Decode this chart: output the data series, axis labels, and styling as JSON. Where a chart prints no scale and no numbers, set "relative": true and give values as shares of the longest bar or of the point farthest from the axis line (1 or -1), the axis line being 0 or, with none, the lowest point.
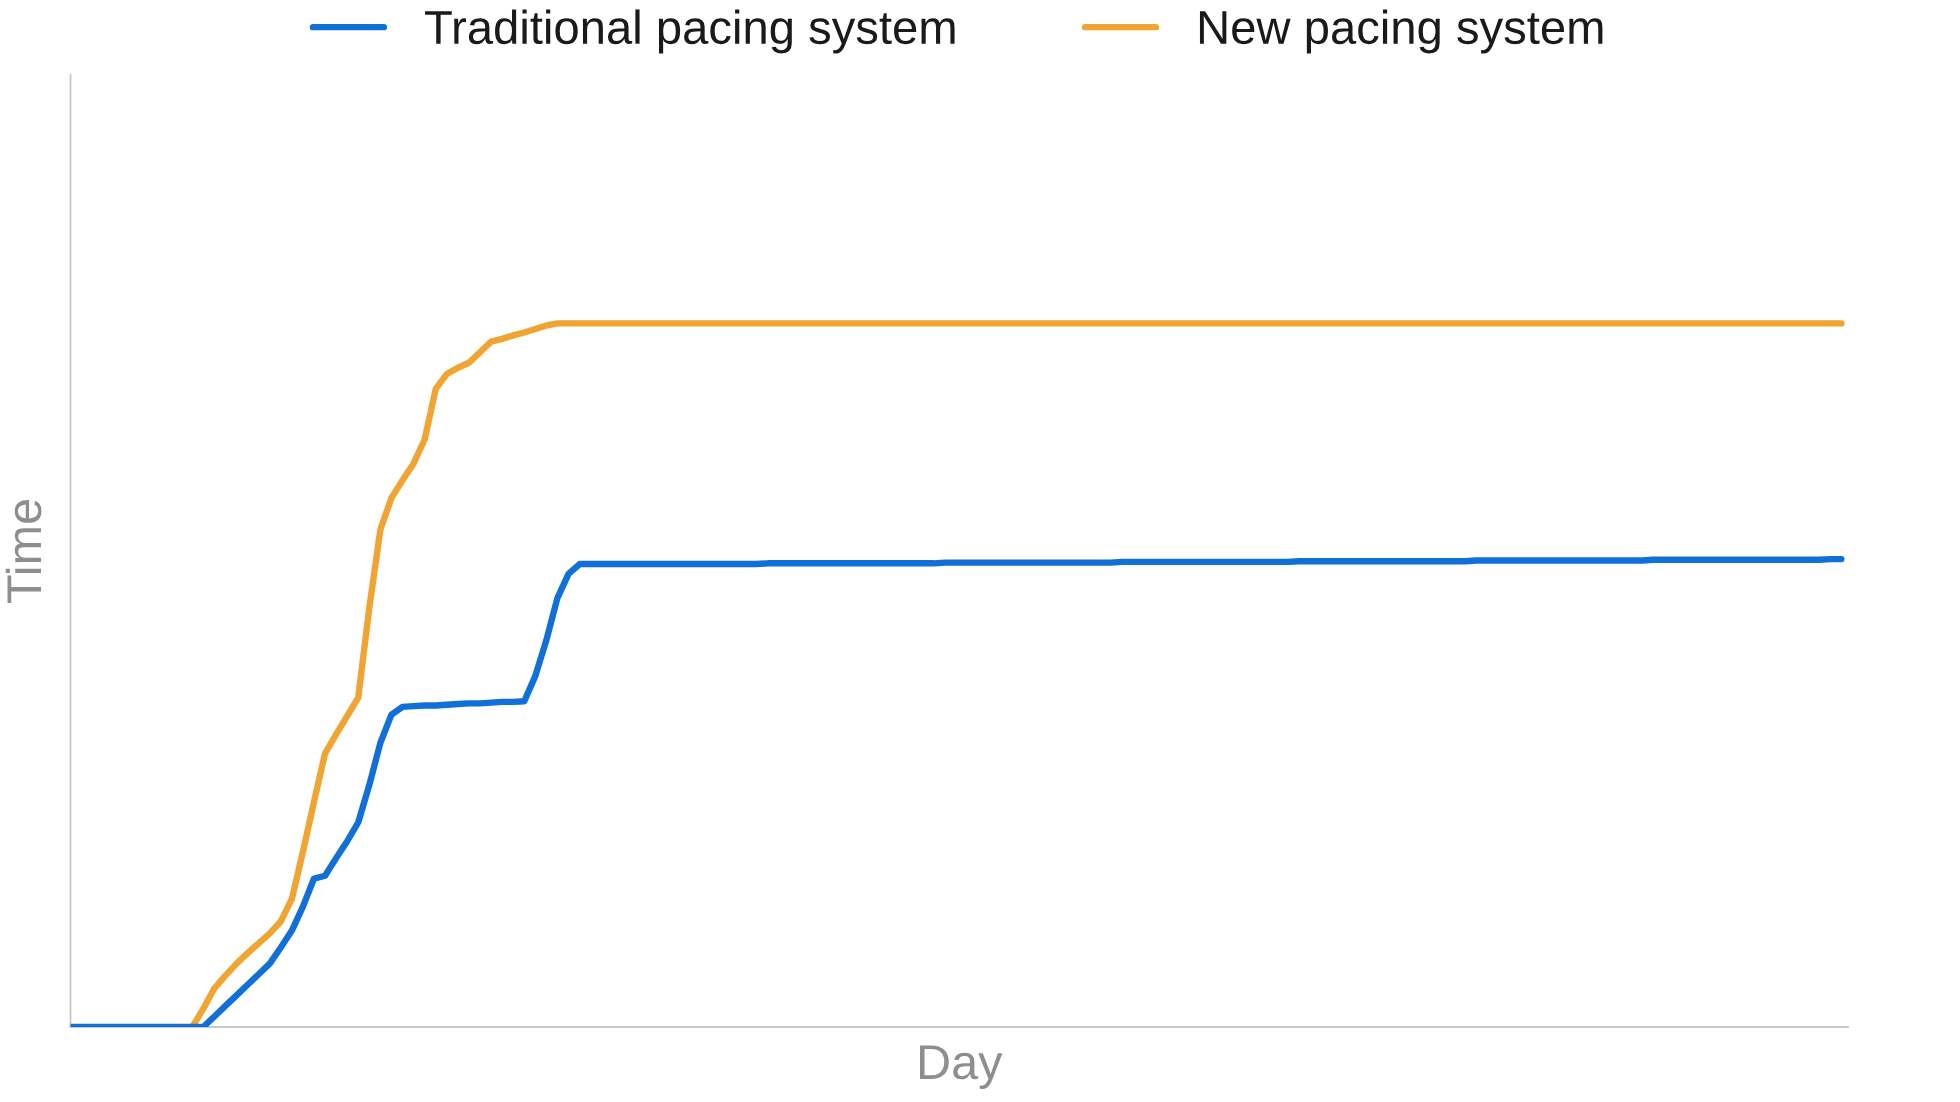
{
  "chart_data": {
    "type": "line",
    "xlabel": "Day",
    "ylabel": "Time",
    "relative": true,
    "legend": "top",
    "grid": false,
    "tick_labels": false,
    "marker": "none",
    "line_style": "solid",
    "categories": [
      null,
      null,
      null,
      null,
      null,
      null,
      null,
      null,
      null,
      null,
      null,
      null,
      null,
      null,
      null,
      null,
      null,
      null,
      null,
      null,
      null,
      null,
      null,
      null,
      null,
      null,
      null,
      null,
      null,
      null,
      null,
      null,
      null,
      null,
      null,
      null,
      null,
      null,
      null,
      null,
      null,
      null,
      null,
      null,
      null,
      null,
      null,
      null,
      null,
      null,
      null,
      null,
      null,
      null,
      null,
      null,
      null,
      null,
      null,
      null,
      null,
      null,
      null,
      null,
      null,
      null,
      null,
      null,
      null,
      null,
      null,
      null,
      null,
      null,
      null,
      null,
      null,
      null,
      null,
      null,
      null,
      null,
      null,
      null,
      null,
      null,
      null,
      null,
      null,
      null,
      null,
      null,
      null,
      null,
      null,
      null,
      null,
      null,
      null,
      null,
      null,
      null,
      null,
      null,
      null,
      null,
      null,
      null,
      null,
      null,
      null,
      null,
      null,
      null,
      null,
      null,
      null,
      null,
      null,
      null,
      null,
      null,
      null,
      null,
      null,
      null,
      null,
      null,
      null,
      null,
      null,
      null,
      null,
      null,
      null,
      null,
      null,
      null,
      null,
      null,
      null,
      null,
      null,
      null,
      null,
      null,
      null,
      null,
      null,
      null,
      null,
      null,
      null,
      null,
      null,
      null,
      null,
      null,
      null,
      null,
      null
    ],
    "series": [
      {
        "name": "Traditional pacing system",
        "color": "#1170d8",
        "values": [
          0,
          0,
          0,
          0,
          0,
          0,
          0,
          0,
          0,
          0,
          0,
          0,
          0,
          0.015,
          0.03,
          0.045,
          0.06,
          0.075,
          0.09,
          0.113,
          0.137,
          0.171,
          0.211,
          0.215,
          0.24,
          0.264,
          0.291,
          0.344,
          0.404,
          0.444,
          0.455,
          0.456,
          0.457,
          0.457,
          0.458,
          0.459,
          0.46,
          0.46,
          0.461,
          0.462,
          0.462,
          0.463,
          0.499,
          0.55,
          0.61,
          0.644,
          0.658,
          0.658,
          0.658,
          0.658,
          0.658,
          0.658,
          0.658,
          0.658,
          0.658,
          0.658,
          0.658,
          0.658,
          0.658,
          0.658,
          0.658,
          0.658,
          0.658,
          0.659,
          0.659,
          0.659,
          0.659,
          0.659,
          0.659,
          0.659,
          0.659,
          0.659,
          0.659,
          0.659,
          0.659,
          0.659,
          0.659,
          0.659,
          0.659,
          0.66,
          0.66,
          0.66,
          0.66,
          0.66,
          0.66,
          0.66,
          0.66,
          0.66,
          0.66,
          0.66,
          0.66,
          0.66,
          0.66,
          0.66,
          0.66,
          0.661,
          0.661,
          0.661,
          0.661,
          0.661,
          0.661,
          0.661,
          0.661,
          0.661,
          0.661,
          0.661,
          0.661,
          0.661,
          0.661,
          0.661,
          0.661,
          0.662,
          0.662,
          0.662,
          0.662,
          0.662,
          0.662,
          0.662,
          0.662,
          0.662,
          0.662,
          0.662,
          0.662,
          0.662,
          0.662,
          0.662,
          0.662,
          0.663,
          0.663,
          0.663,
          0.663,
          0.663,
          0.663,
          0.663,
          0.663,
          0.663,
          0.663,
          0.663,
          0.663,
          0.663,
          0.663,
          0.663,
          0.663,
          0.664,
          0.664,
          0.664,
          0.664,
          0.664,
          0.664,
          0.664,
          0.664,
          0.664,
          0.664,
          0.664,
          0.664,
          0.664,
          0.664,
          0.664,
          0.664,
          0.665,
          0.665
        ]
      },
      {
        "name": "New pacing system",
        "color": "#f0a431",
        "values": [
          null,
          null,
          null,
          null,
          null,
          null,
          null,
          null,
          null,
          null,
          null,
          0,
          0.026,
          0.055,
          0.073,
          0.09,
          0.105,
          0.119,
          0.133,
          0.15,
          0.182,
          0.249,
          0.32,
          0.389,
          0.416,
          0.442,
          0.468,
          0.596,
          0.707,
          0.752,
          0.777,
          0.801,
          0.835,
          0.907,
          0.928,
          0.937,
          0.944,
          0.959,
          0.974,
          0.978,
          0.983,
          0.987,
          0.992,
          0.997,
          1,
          1,
          1,
          1,
          1,
          1,
          1,
          1,
          1,
          1,
          1,
          1,
          1,
          1,
          1,
          1,
          1,
          1,
          1,
          1,
          1,
          1,
          1,
          1,
          1,
          1,
          1,
          1,
          1,
          1,
          1,
          1,
          1,
          1,
          1,
          1,
          1,
          1,
          1,
          1,
          1,
          1,
          1,
          1,
          1,
          1,
          1,
          1,
          1,
          1,
          1,
          1,
          1,
          1,
          1,
          1,
          1,
          1,
          1,
          1,
          1,
          1,
          1,
          1,
          1,
          1,
          1,
          1,
          1,
          1,
          1,
          1,
          1,
          1,
          1,
          1,
          1,
          1,
          1,
          1,
          1,
          1,
          1,
          1,
          1,
          1,
          1,
          1,
          1,
          1,
          1,
          1,
          1,
          1,
          1,
          1,
          1,
          1,
          1,
          1,
          1,
          1,
          1,
          1,
          1,
          1,
          1,
          1,
          1,
          1,
          1,
          1,
          1,
          1,
          1,
          1,
          1
        ]
      }
    ]
  }
}
